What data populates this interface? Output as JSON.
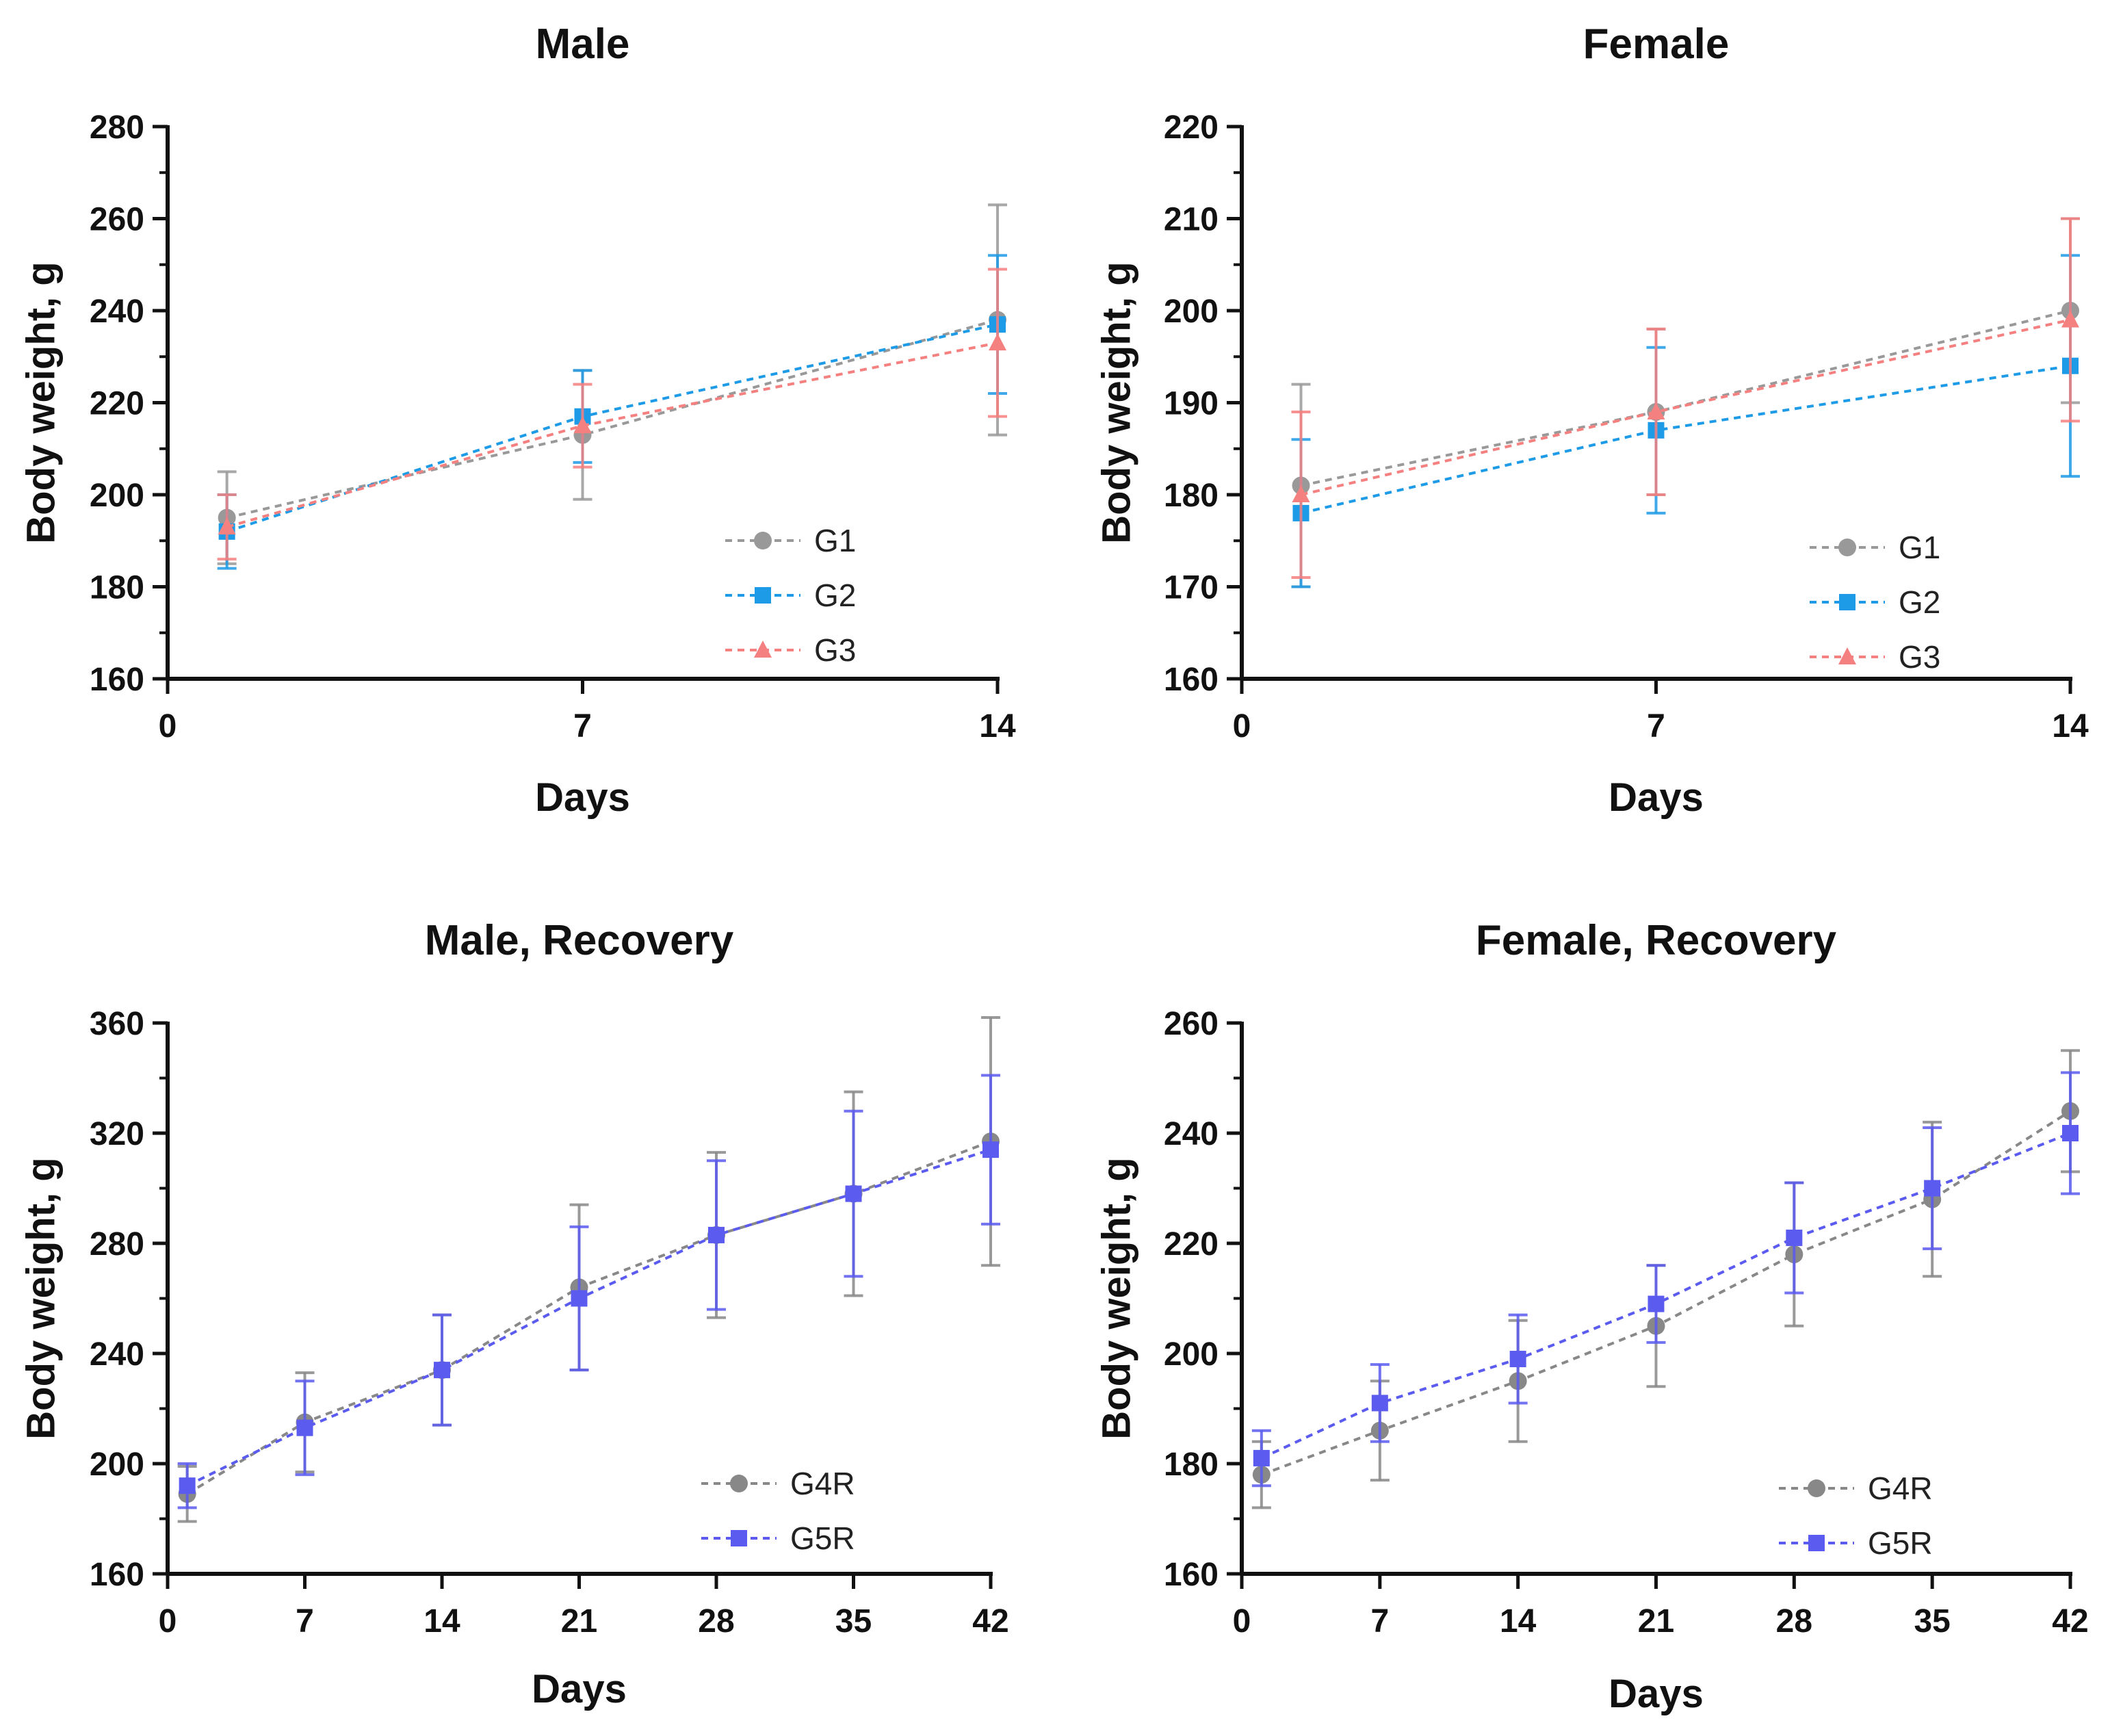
{
  "chart_data": [
    {
      "type": "line",
      "title": "Male",
      "xlabel": "Days",
      "ylabel": "Body weight, g",
      "xlim": [
        0,
        14
      ],
      "ylim": [
        160,
        280
      ],
      "xticks": [
        "0",
        "7",
        "14"
      ],
      "yticks": [
        "160",
        "180",
        "200",
        "220",
        "240",
        "260",
        "280"
      ],
      "legend_position": "bottom-right",
      "series": [
        {
          "name": "G1",
          "marker": "circle",
          "color": "#999999",
          "x": [
            1,
            7,
            14
          ],
          "values": [
            195,
            213,
            238
          ],
          "errors": [
            10,
            14,
            25
          ]
        },
        {
          "name": "G2",
          "marker": "square",
          "color": "#1E9BE6",
          "x": [
            1,
            7,
            14
          ],
          "values": [
            192,
            217,
            237
          ],
          "errors": [
            8,
            10,
            15
          ]
        },
        {
          "name": "G3",
          "marker": "triangle",
          "color": "#F58080",
          "x": [
            1,
            7,
            14
          ],
          "values": [
            193,
            215,
            233
          ],
          "errors": [
            7,
            9,
            16
          ]
        }
      ]
    },
    {
      "type": "line",
      "title": "Female",
      "xlabel": "Days",
      "ylabel": "Body weight, g",
      "xlim": [
        0,
        14
      ],
      "ylim": [
        160,
        220
      ],
      "xticks": [
        "0",
        "7",
        "14"
      ],
      "yticks": [
        "160",
        "170",
        "180",
        "190",
        "200",
        "210",
        "220"
      ],
      "legend_position": "bottom-right",
      "series": [
        {
          "name": "G1",
          "marker": "circle",
          "color": "#999999",
          "x": [
            1,
            7,
            14
          ],
          "values": [
            181,
            189,
            200
          ],
          "errors": [
            11,
            9,
            10
          ]
        },
        {
          "name": "G2",
          "marker": "square",
          "color": "#1E9BE6",
          "x": [
            1,
            7,
            14
          ],
          "values": [
            178,
            187,
            194
          ],
          "errors": [
            8,
            9,
            12
          ]
        },
        {
          "name": "G3",
          "marker": "triangle",
          "color": "#F58080",
          "x": [
            1,
            7,
            14
          ],
          "values": [
            180,
            189,
            199
          ],
          "errors": [
            9,
            9,
            11
          ]
        }
      ]
    },
    {
      "type": "line",
      "title": "Male, Recovery",
      "xlabel": "Days",
      "ylabel": "Body weight, g",
      "xlim": [
        0,
        42
      ],
      "ylim": [
        160,
        360
      ],
      "xticks": [
        "0",
        "7",
        "14",
        "21",
        "28",
        "35",
        "42"
      ],
      "yticks": [
        "160",
        "200",
        "240",
        "280",
        "320",
        "360"
      ],
      "legend_position": "bottom-right",
      "series": [
        {
          "name": "G4R",
          "marker": "circle",
          "color": "#888888",
          "x": [
            1,
            7,
            14,
            21,
            28,
            35,
            42
          ],
          "values": [
            189,
            215,
            234,
            264,
            283,
            298,
            317
          ],
          "errors": [
            10,
            18,
            20,
            30,
            30,
            37,
            45
          ]
        },
        {
          "name": "G5R",
          "marker": "square",
          "color": "#5B5BF0",
          "x": [
            1,
            7,
            14,
            21,
            28,
            35,
            42
          ],
          "values": [
            192,
            213,
            234,
            260,
            283,
            298,
            314
          ],
          "errors": [
            8,
            17,
            20,
            26,
            27,
            30,
            27
          ]
        }
      ]
    },
    {
      "type": "line",
      "title": "Female, Recovery",
      "xlabel": "Days",
      "ylabel": "Body weight, g",
      "xlim": [
        0,
        42
      ],
      "ylim": [
        160,
        260
      ],
      "xticks": [
        "0",
        "7",
        "14",
        "21",
        "28",
        "35",
        "42"
      ],
      "yticks": [
        "160",
        "180",
        "200",
        "220",
        "240",
        "260"
      ],
      "legend_position": "bottom-right",
      "series": [
        {
          "name": "G4R",
          "marker": "circle",
          "color": "#888888",
          "x": [
            1,
            7,
            14,
            21,
            28,
            35,
            42
          ],
          "values": [
            178,
            186,
            195,
            205,
            218,
            228,
            244
          ],
          "errors": [
            6,
            9,
            11,
            11,
            13,
            14,
            11
          ]
        },
        {
          "name": "G5R",
          "marker": "square",
          "color": "#5B5BF0",
          "x": [
            1,
            7,
            14,
            21,
            28,
            35,
            42
          ],
          "values": [
            181,
            191,
            199,
            209,
            221,
            230,
            240
          ],
          "errors": [
            5,
            7,
            8,
            7,
            10,
            11,
            11
          ]
        }
      ]
    }
  ]
}
